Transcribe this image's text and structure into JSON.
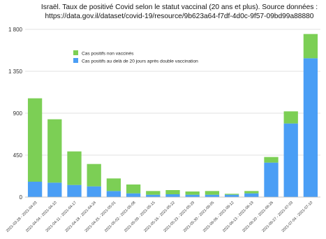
{
  "chart_data": {
    "type": "bar",
    "stacked": true,
    "title_lines": [
      "Israël. Taux de positivé Covid selon le statut vaccinal (20 ans et plus). Source données :",
      "https://data.gov.il/dataset/covid-19/resource/9b623a64-f7df-4d0c-9f57-09bd99a88880"
    ],
    "xlabel": "",
    "ylabel": "",
    "ylim": [
      0,
      1800
    ],
    "yticks": [
      0,
      450,
      900,
      1350,
      1800
    ],
    "ytick_labels": [
      "0",
      "450",
      "900",
      "1 350",
      "1 800"
    ],
    "grid": "horizontal",
    "legend_position": "upper-left",
    "categories": [
      "2021-03-28 - 2021-04-03",
      "2021-04-04 - 2021-04-10",
      "2021-04-11 - 2021-04-17",
      "2021-04-18 - 2021-04-24",
      "2021-04-25 - 2021-05-01",
      "2021-05-02 - 2021-05-08",
      "2021-05-09 - 2021-05-15",
      "2021-05-16 - 2021-05-22",
      "2021-05-23 - 2021-05-29",
      "2021-05-30 - 2021-06-05",
      "2021-06-06 - 2021-06-12",
      "2021-06-13 - 2021-06-19",
      "2021-06-20 - 2021-06-26",
      "2021-06-27 - 2021-07-03",
      "2021-07-04 - 2021-07-10"
    ],
    "series": [
      {
        "name": "Cas positifs au delà de 20 jours après double vaccination",
        "color": "#4a9ef5",
        "values": [
          165,
          155,
          130,
          115,
          65,
          40,
          25,
          30,
          25,
          25,
          25,
          40,
          370,
          790,
          1490
        ]
      },
      {
        "name": "Cas positifs non vaccinés",
        "color": "#7ccf55",
        "values": [
          895,
          680,
          360,
          240,
          135,
          95,
          40,
          45,
          35,
          40,
          10,
          25,
          60,
          130,
          260
        ]
      }
    ]
  }
}
